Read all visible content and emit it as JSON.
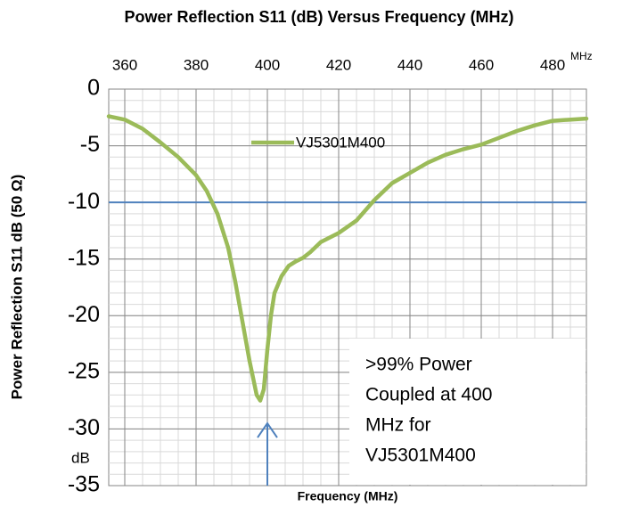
{
  "chart_data": {
    "type": "line",
    "title": "Power Reflection S11  (dB) Versus Frequency (MHz)",
    "x_label": "Frequency (MHz)",
    "y_label": "Power Reflection S11 dB (50 Ω)",
    "x_unit": "MHz",
    "y_unit": "dB",
    "x": [
      355.5,
      360,
      365,
      370,
      375,
      380,
      383,
      386,
      389,
      391,
      393,
      395,
      397,
      398,
      399,
      400,
      401,
      402,
      404,
      406,
      408,
      410,
      412,
      415,
      420,
      425,
      430,
      435,
      440,
      445,
      450,
      455,
      460,
      465,
      470,
      475,
      480,
      489.5
    ],
    "series": [
      {
        "name": "VJ5301M400",
        "color": "#9bbb59",
        "values": [
          -2.4,
          -2.7,
          -3.5,
          -4.7,
          -6,
          -7.6,
          -9,
          -11,
          -14,
          -17,
          -20.5,
          -24,
          -27,
          -27.5,
          -26.5,
          -23,
          -20,
          -18,
          -16.5,
          -15.6,
          -15.2,
          -14.9,
          -14.4,
          -13.5,
          -12.7,
          -11.6,
          -9.8,
          -8.3,
          -7.4,
          -6.5,
          -5.8,
          -5.3,
          -4.9,
          -4.3,
          -3.7,
          -3.2,
          -2.8,
          -2.6
        ]
      }
    ],
    "xlim": [
      355.5,
      489.5
    ],
    "xticks": [
      360,
      380,
      400,
      420,
      440,
      460,
      480
    ],
    "ylim": [
      -35,
      0
    ],
    "yticks": [
      0,
      -5,
      -10,
      -15,
      -20,
      -25,
      -30,
      -35
    ],
    "grid": true,
    "minor_grid": true,
    "reference_line": {
      "y": -10,
      "color": "#4f81bd"
    },
    "arrow": {
      "x": 400,
      "y_from": -35,
      "y_to": -29.5,
      "color": "#4f81bd"
    },
    "annotation": [
      ">99% Power",
      "Coupled at 400",
      "MHz for",
      "VJ5301M400"
    ]
  }
}
